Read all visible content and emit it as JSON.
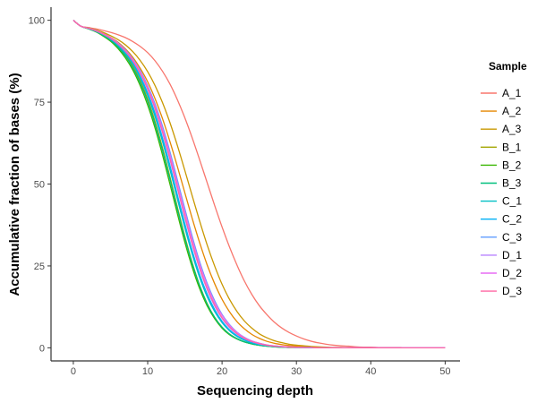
{
  "chart_data": {
    "type": "line",
    "xlabel": "Sequencing depth",
    "ylabel": "Accumulative fraction of bases (%)",
    "xlim": [
      -3,
      52
    ],
    "ylim": [
      -4,
      104
    ],
    "x_ticks": [
      0,
      10,
      20,
      30,
      40,
      50
    ],
    "y_ticks": [
      0,
      25,
      50,
      75,
      100
    ],
    "grid": false,
    "legend": {
      "title": "Sample",
      "position": "right"
    },
    "x": [
      0,
      1,
      2,
      3,
      4,
      5,
      6,
      7,
      8,
      9,
      10,
      11,
      12,
      13,
      14,
      15,
      16,
      17,
      18,
      19,
      20,
      21,
      22,
      23,
      24,
      25,
      26,
      27,
      28,
      29,
      30,
      31,
      32,
      33,
      34,
      35,
      36,
      37,
      38,
      39,
      40,
      41,
      42,
      43,
      44,
      45,
      46,
      47,
      48,
      49,
      50
    ],
    "series": [
      {
        "name": "A_1",
        "color": "#F8766D",
        "values": [
          100.0,
          98.2,
          97.8,
          97.4,
          96.9,
          96.3,
          95.6,
          94.7,
          93.5,
          92.0,
          90.1,
          87.6,
          84.4,
          80.5,
          75.7,
          70.2,
          64.0,
          57.3,
          50.4,
          43.5,
          36.9,
          30.8,
          25.3,
          20.4,
          16.3,
          12.9,
          10.2,
          7.9,
          6.1,
          4.7,
          3.6,
          2.7,
          2.0,
          1.5,
          1.1,
          0.8,
          0.6,
          0.5,
          0.3,
          0.2,
          0.2,
          0.1,
          0.1,
          0.1,
          0.1,
          0.0,
          0.0,
          0.0,
          0.0,
          0.0,
          0.0
        ]
      },
      {
        "name": "A_2",
        "color": "#E58700",
        "values": [
          100.0,
          98.2,
          97.6,
          96.9,
          96.0,
          94.8,
          93.3,
          91.3,
          88.7,
          85.3,
          81.2,
          76.0,
          69.9,
          62.9,
          55.3,
          47.3,
          39.4,
          32.0,
          25.3,
          19.6,
          14.8,
          11.0,
          8.0,
          5.8,
          4.1,
          2.9,
          2.0,
          1.4,
          1.0,
          0.7,
          0.5,
          0.3,
          0.2,
          0.2,
          0.1,
          0.1,
          0.1,
          0.0,
          0.0,
          0.0,
          0.0,
          0.0,
          0.0,
          0.0,
          0.0,
          0.0,
          0.0,
          0.0,
          0.0,
          0.0,
          0.0
        ]
      },
      {
        "name": "A_3",
        "color": "#C99800",
        "values": [
          100.0,
          98.2,
          97.7,
          97.1,
          96.3,
          95.3,
          94.1,
          92.5,
          90.4,
          87.7,
          84.3,
          80.0,
          74.8,
          68.7,
          61.7,
          54.1,
          46.3,
          38.6,
          31.4,
          25.0,
          19.4,
          14.8,
          11.1,
          8.2,
          6.0,
          4.3,
          3.1,
          2.2,
          1.6,
          1.1,
          0.8,
          0.6,
          0.4,
          0.3,
          0.2,
          0.1,
          0.1,
          0.1,
          0.0,
          0.0,
          0.0,
          0.0,
          0.0,
          0.0,
          0.0,
          0.0,
          0.0,
          0.0,
          0.0,
          0.0,
          0.0
        ]
      },
      {
        "name": "B_1",
        "color": "#A3A500",
        "values": [
          100.0,
          98.2,
          97.5,
          96.7,
          95.6,
          94.1,
          92.1,
          89.5,
          86.0,
          81.5,
          75.9,
          69.0,
          61.0,
          52.1,
          42.9,
          34.0,
          25.9,
          19.0,
          13.5,
          9.3,
          6.3,
          4.2,
          2.8,
          1.8,
          1.2,
          0.8,
          0.5,
          0.3,
          0.2,
          0.1,
          0.1,
          0.1,
          0.0,
          0.0,
          0.0,
          0.0,
          0.0,
          0.0,
          0.0,
          0.0,
          0.0,
          0.0,
          0.0,
          0.0,
          0.0,
          0.0,
          0.0,
          0.0,
          0.0,
          0.0,
          0.0
        ]
      },
      {
        "name": "B_2",
        "color": "#39B600",
        "values": [
          100.0,
          98.2,
          97.4,
          96.5,
          95.2,
          93.6,
          91.4,
          88.5,
          84.8,
          80.0,
          74.1,
          67.0,
          58.8,
          49.9,
          40.9,
          32.2,
          24.5,
          18.0,
          12.8,
          8.9,
          6.0,
          4.0,
          2.7,
          1.8,
          1.2,
          0.8,
          0.5,
          0.3,
          0.2,
          0.1,
          0.1,
          0.1,
          0.0,
          0.0,
          0.0,
          0.0,
          0.0,
          0.0,
          0.0,
          0.0,
          0.0,
          0.0,
          0.0,
          0.0,
          0.0,
          0.0,
          0.0,
          0.0,
          0.0,
          0.0,
          0.0
        ]
      },
      {
        "name": "B_3",
        "color": "#00BF7D",
        "values": [
          100.0,
          98.2,
          97.5,
          96.6,
          95.4,
          93.9,
          91.8,
          89.1,
          85.5,
          80.9,
          75.2,
          68.2,
          60.2,
          51.4,
          42.3,
          33.5,
          25.6,
          18.9,
          13.4,
          9.3,
          6.3,
          4.2,
          2.8,
          1.8,
          1.2,
          0.8,
          0.5,
          0.3,
          0.2,
          0.1,
          0.1,
          0.1,
          0.0,
          0.0,
          0.0,
          0.0,
          0.0,
          0.0,
          0.0,
          0.0,
          0.0,
          0.0,
          0.0,
          0.0,
          0.0,
          0.0,
          0.0,
          0.0,
          0.0,
          0.0,
          0.0
        ]
      },
      {
        "name": "C_1",
        "color": "#00BFC4",
        "values": [
          100.0,
          98.2,
          97.5,
          96.7,
          95.6,
          94.2,
          92.3,
          89.8,
          86.6,
          82.3,
          77.0,
          70.5,
          62.9,
          54.3,
          45.4,
          36.6,
          28.5,
          21.4,
          15.6,
          11.1,
          7.7,
          5.2,
          3.5,
          2.3,
          1.5,
          1.0,
          0.7,
          0.4,
          0.3,
          0.2,
          0.1,
          0.1,
          0.0,
          0.0,
          0.0,
          0.0,
          0.0,
          0.0,
          0.0,
          0.0,
          0.0,
          0.0,
          0.0,
          0.0,
          0.0,
          0.0,
          0.0,
          0.0,
          0.0,
          0.0,
          0.0
        ]
      },
      {
        "name": "C_2",
        "color": "#00B0F6",
        "values": [
          100.0,
          98.2,
          97.5,
          96.7,
          95.7,
          94.3,
          92.5,
          90.1,
          87.0,
          82.9,
          77.8,
          71.5,
          64.0,
          55.6,
          46.6,
          37.8,
          29.5,
          22.3,
          16.4,
          11.7,
          8.1,
          5.5,
          3.7,
          2.5,
          1.6,
          1.1,
          0.7,
          0.5,
          0.3,
          0.2,
          0.1,
          0.1,
          0.1,
          0.0,
          0.0,
          0.0,
          0.0,
          0.0,
          0.0,
          0.0,
          0.0,
          0.0,
          0.0,
          0.0,
          0.0,
          0.0,
          0.0,
          0.0,
          0.0,
          0.0,
          0.0
        ]
      },
      {
        "name": "C_3",
        "color": "#619CFF",
        "values": [
          100.0,
          98.2,
          97.6,
          96.9,
          95.9,
          94.7,
          93.1,
          91.0,
          88.2,
          84.6,
          80.0,
          74.4,
          67.6,
          59.8,
          51.2,
          42.4,
          33.9,
          26.2,
          19.7,
          14.4,
          10.2,
          7.1,
          4.8,
          3.2,
          2.1,
          1.4,
          0.9,
          0.6,
          0.4,
          0.3,
          0.2,
          0.1,
          0.1,
          0.0,
          0.0,
          0.0,
          0.0,
          0.0,
          0.0,
          0.0,
          0.0,
          0.0,
          0.0,
          0.0,
          0.0,
          0.0,
          0.0,
          0.0,
          0.0,
          0.0,
          0.0
        ]
      },
      {
        "name": "D_1",
        "color": "#B983FF",
        "values": [
          100.0,
          98.2,
          97.6,
          96.8,
          95.8,
          94.5,
          92.8,
          90.5,
          87.6,
          83.7,
          78.9,
          72.8,
          65.6,
          57.4,
          48.6,
          39.7,
          31.4,
          24.0,
          17.8,
          12.8,
          9.0,
          6.2,
          4.2,
          2.8,
          1.9,
          1.2,
          0.8,
          0.5,
          0.3,
          0.2,
          0.1,
          0.1,
          0.1,
          0.0,
          0.0,
          0.0,
          0.0,
          0.0,
          0.0,
          0.0,
          0.0,
          0.0,
          0.0,
          0.0,
          0.0,
          0.0,
          0.0,
          0.0,
          0.0,
          0.0,
          0.0
        ]
      },
      {
        "name": "D_2",
        "color": "#E76BF3",
        "values": [
          100.0,
          98.2,
          97.6,
          96.9,
          95.9,
          94.7,
          93.0,
          90.8,
          88.0,
          84.3,
          79.6,
          73.8,
          66.8,
          58.9,
          50.2,
          41.5,
          33.0,
          25.5,
          19.1,
          13.9,
          9.9,
          6.9,
          4.7,
          3.1,
          2.1,
          1.4,
          0.9,
          0.6,
          0.4,
          0.3,
          0.2,
          0.1,
          0.1,
          0.0,
          0.0,
          0.0,
          0.0,
          0.0,
          0.0,
          0.0,
          0.0,
          0.0,
          0.0,
          0.0,
          0.0,
          0.0,
          0.0,
          0.0,
          0.0,
          0.0,
          0.0
        ]
      },
      {
        "name": "D_3",
        "color": "#FF67A4",
        "values": [
          100.0,
          98.2,
          97.6,
          96.8,
          95.8,
          94.5,
          92.8,
          90.6,
          87.6,
          83.8,
          79.0,
          73.0,
          65.8,
          57.7,
          48.9,
          40.1,
          31.8,
          24.4,
          18.1,
          13.1,
          9.2,
          6.4,
          4.3,
          2.9,
          1.9,
          1.3,
          0.8,
          0.5,
          0.4,
          0.2,
          0.2,
          0.1,
          0.1,
          0.0,
          0.0,
          0.0,
          0.0,
          0.0,
          0.0,
          0.0,
          0.0,
          0.0,
          0.0,
          0.0,
          0.0,
          0.0,
          0.0,
          0.0,
          0.0,
          0.0,
          0.0
        ]
      }
    ]
  }
}
